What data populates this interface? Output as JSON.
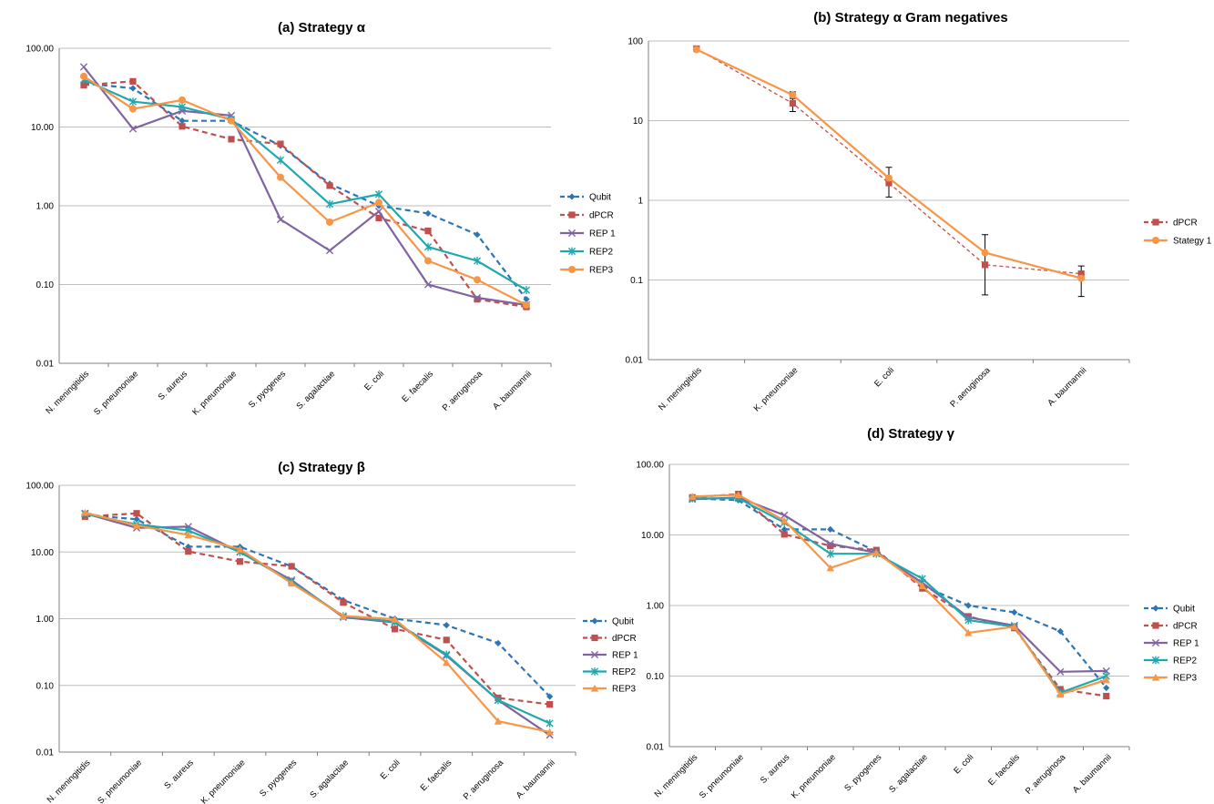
{
  "chart_data": [
    {
      "id": "a",
      "type": "line",
      "title": "(a) Strategy α",
      "y_scale": "log",
      "ylim": [
        0.01,
        100
      ],
      "y_ticks": [
        100,
        10,
        1,
        0.1,
        0.01
      ],
      "y_tick_labels": [
        "100.00",
        "10.00",
        "1.00",
        "0.10",
        "0.01"
      ],
      "grid": true,
      "legend_position": "right",
      "categories": [
        "N. meningitidis",
        "S. pneumoniae",
        "S. aureus",
        "K. pneumoniae",
        "S. pyogenes",
        "S. agalactiae",
        "E. coli",
        "E. faecalis",
        "P. aeruginosa",
        "A. baumannii"
      ],
      "series": [
        {
          "name": "Qubit",
          "color": "#2E75B6",
          "dash": true,
          "marker": "diamond",
          "values": [
            36,
            31,
            12,
            12,
            5.8,
            1.9,
            1.0,
            0.8,
            0.43,
            0.065
          ]
        },
        {
          "name": "dPCR",
          "color": "#C0504D",
          "dash": true,
          "marker": "square",
          "values": [
            34,
            38,
            10.2,
            7,
            6.1,
            1.8,
            0.7,
            0.48,
            0.065,
            0.052
          ]
        },
        {
          "name": "REP 1",
          "color": "#8064A2",
          "dash": false,
          "marker": "x",
          "values": [
            58,
            9.5,
            16,
            14,
            0.67,
            0.27,
            0.85,
            0.1,
            0.068,
            0.055
          ]
        },
        {
          "name": "REP2",
          "color": "#1FA8B0",
          "dash": false,
          "marker": "asterisk",
          "values": [
            40,
            21,
            18,
            12.5,
            3.8,
            1.05,
            1.4,
            0.3,
            0.2,
            0.085
          ]
        },
        {
          "name": "REP3",
          "color": "#F79646",
          "dash": false,
          "marker": "circle",
          "values": [
            44,
            17,
            22,
            12,
            2.3,
            0.62,
            1.1,
            0.2,
            0.115,
            0.055
          ]
        }
      ]
    },
    {
      "id": "b",
      "type": "line",
      "title": "(b) Strategy α Gram negatives",
      "y_scale": "log",
      "ylim": [
        0.01,
        100
      ],
      "y_ticks": [
        100,
        10,
        1,
        0.1,
        0.01
      ],
      "y_tick_labels": [
        "100",
        "10",
        "1",
        "0.1",
        "0.01"
      ],
      "grid": true,
      "legend_position": "right",
      "categories": [
        "N. meningitidis",
        "K. pneumoniae",
        "E. coli",
        "P. aeruginosa",
        "A. baumannii"
      ],
      "series": [
        {
          "name": "dPCR",
          "color": "#C0504D",
          "dash": true,
          "marker": "square",
          "values": [
            80,
            16.5,
            1.65,
            0.155,
            0.12
          ],
          "error_bars": [
            null,
            [
              13,
              20
            ],
            [
              1.1,
              2.6
            ],
            [
              0.065,
              0.37
            ],
            [
              0.062,
              0.15
            ]
          ]
        },
        {
          "name": "Stategy 1",
          "color": "#F79646",
          "dash": false,
          "marker": "circle",
          "values": [
            78,
            21,
            1.9,
            0.22,
            0.105
          ],
          "error_bars": [
            null,
            [
              19,
              23
            ],
            null,
            null,
            null
          ]
        }
      ]
    },
    {
      "id": "c",
      "type": "line",
      "title": "(c) Strategy β",
      "y_scale": "log",
      "ylim": [
        0.01,
        100
      ],
      "y_ticks": [
        100,
        10,
        1,
        0.1,
        0.01
      ],
      "y_tick_labels": [
        "100.00",
        "10.00",
        "1.00",
        "0.10",
        "0.01"
      ],
      "grid": true,
      "legend_position": "right",
      "categories": [
        "N. meningitidis",
        "S. pneumoniae",
        "S. aureus",
        "K. pneumoniae",
        "S. pyogenes",
        "S. agalactiae",
        "E. coli",
        "E. faecalis",
        "P. aeruginosa",
        "A. baumannii"
      ],
      "series": [
        {
          "name": "Qubit",
          "color": "#2E75B6",
          "dash": true,
          "marker": "diamond",
          "values": [
            36,
            31,
            12,
            12,
            6.1,
            1.9,
            1.0,
            0.8,
            0.43,
            0.068
          ]
        },
        {
          "name": "dPCR",
          "color": "#C0504D",
          "dash": true,
          "marker": "square",
          "values": [
            34,
            38,
            10.2,
            7.2,
            6.1,
            1.75,
            0.7,
            0.48,
            0.065,
            0.052
          ]
        },
        {
          "name": "REP 1",
          "color": "#8064A2",
          "dash": false,
          "marker": "x",
          "values": [
            38,
            23,
            24,
            10,
            3.8,
            1.05,
            0.88,
            0.28,
            0.06,
            0.018
          ]
        },
        {
          "name": "REP2",
          "color": "#1FA8B0",
          "dash": false,
          "marker": "asterisk",
          "values": [
            37,
            26,
            21,
            10,
            3.6,
            1.1,
            0.9,
            0.29,
            0.06,
            0.027
          ]
        },
        {
          "name": "REP3",
          "color": "#F79646",
          "dash": false,
          "marker": "triangle",
          "values": [
            39,
            25,
            18,
            11,
            3.4,
            1.1,
            0.98,
            0.22,
            0.029,
            0.02
          ]
        }
      ]
    },
    {
      "id": "d",
      "type": "line",
      "title": "(d) Strategy γ",
      "y_scale": "log",
      "ylim": [
        0.01,
        100
      ],
      "y_ticks": [
        100,
        10,
        1,
        0.1,
        0.01
      ],
      "y_tick_labels": [
        "100.00",
        "10.00",
        "1.00",
        "0.10",
        "0.01"
      ],
      "grid": true,
      "legend_position": "right",
      "categories": [
        "N. meningitidis",
        "S. pneumoniae",
        "S. aureus",
        "K. pneumoniae",
        "S. pyogenes",
        "S. agalactiae",
        "E. coli",
        "E. faecalis",
        "P. aeruginosa",
        "A. baumannii"
      ],
      "series": [
        {
          "name": "Qubit",
          "color": "#2E75B6",
          "dash": true,
          "marker": "diamond",
          "values": [
            33,
            31,
            12,
            12,
            5.8,
            1.9,
            1.0,
            0.8,
            0.43,
            0.068
          ]
        },
        {
          "name": "dPCR",
          "color": "#C0504D",
          "dash": true,
          "marker": "square",
          "values": [
            34,
            38,
            10.2,
            7,
            6.1,
            1.75,
            0.7,
            0.48,
            0.065,
            0.052
          ]
        },
        {
          "name": "REP 1",
          "color": "#8064A2",
          "dash": false,
          "marker": "x",
          "values": [
            32,
            34,
            19,
            7.5,
            5.6,
            2.1,
            0.68,
            0.52,
            0.115,
            0.118
          ]
        },
        {
          "name": "REP2",
          "color": "#1FA8B0",
          "dash": false,
          "marker": "asterisk",
          "values": [
            33,
            33,
            15,
            5.4,
            5.4,
            2.4,
            0.62,
            0.5,
            0.058,
            0.1
          ]
        },
        {
          "name": "REP3",
          "color": "#F79646",
          "dash": false,
          "marker": "triangle",
          "values": [
            35,
            37,
            16,
            3.4,
            5.6,
            1.9,
            0.41,
            0.5,
            0.055,
            0.088
          ]
        }
      ]
    }
  ]
}
